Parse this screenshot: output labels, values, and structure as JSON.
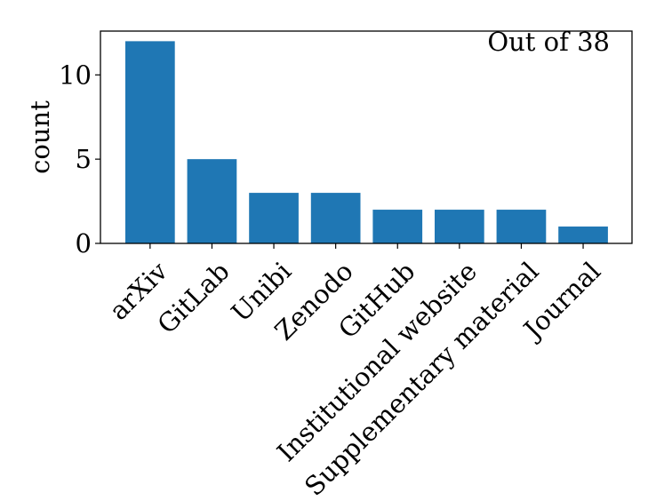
{
  "chart_data": {
    "type": "bar",
    "categories": [
      "arXiv",
      "GitLab",
      "Unibi",
      "Zenodo",
      "GitHub",
      "Institutional website",
      "Supplementary material",
      "Journal"
    ],
    "values": [
      12,
      5,
      3,
      3,
      2,
      2,
      2,
      1
    ],
    "ylabel": "count",
    "yticks": [
      0,
      5,
      10
    ],
    "ylim": [
      0,
      12.6
    ],
    "annotation": "Out of 38",
    "annotation_position": "top-right",
    "grid": false,
    "bar_color": "#1f77b4"
  }
}
